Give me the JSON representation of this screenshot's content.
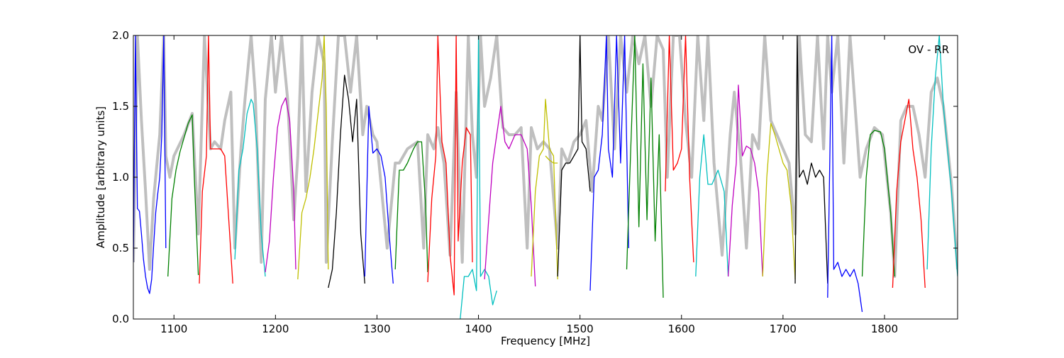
{
  "chart_data": {
    "type": "line",
    "title": "",
    "xlabel": "Frequency [MHz]",
    "ylabel": "Amplitude [arbitrary units]",
    "xlim": [
      1060,
      1872
    ],
    "ylim": [
      0.0,
      2.0
    ],
    "xticks": [
      1100,
      1200,
      1300,
      1400,
      1500,
      1600,
      1700,
      1800
    ],
    "xtick_labels": [
      "1100",
      "1200",
      "1300",
      "1400",
      "1500",
      "1600",
      "1700",
      "1800"
    ],
    "yticks": [
      0.0,
      0.5,
      1.0,
      1.5,
      2.0
    ],
    "ytick_labels": [
      "0.0",
      "0.5",
      "1.0",
      "1.5",
      "2.0"
    ],
    "grid": false,
    "annotation": "OV - RR",
    "raw_color": "#bfbfbf",
    "raw_series": [
      {
        "x": [
          1060,
          1064,
          1068,
          1072,
          1076,
          1080,
          1086,
          1090,
          1092,
          1096,
          1100,
          1110,
          1118,
          1124,
          1130,
          1136,
          1140,
          1146,
          1150,
          1156,
          1160,
          1166,
          1170,
          1176,
          1180,
          1186,
          1190,
          1196,
          1200,
          1206,
          1212,
          1218,
          1222,
          1226,
          1230,
          1236,
          1242,
          1248,
          1250,
          1256,
          1262,
          1268,
          1274,
          1280,
          1286,
          1290,
          1296,
          1300,
          1310,
          1318,
          1322,
          1330,
          1340,
          1346,
          1350,
          1356,
          1360,
          1366,
          1372,
          1378,
          1384,
          1390,
          1394,
          1398,
          1402,
          1406,
          1412,
          1418,
          1424,
          1430,
          1436,
          1442,
          1448,
          1452,
          1458,
          1464,
          1470,
          1478,
          1482,
          1488,
          1494,
          1500,
          1506,
          1512,
          1518,
          1522,
          1528,
          1534,
          1540,
          1546,
          1552,
          1558,
          1564,
          1570,
          1576,
          1582,
          1586,
          1592,
          1598,
          1604,
          1610,
          1616,
          1622,
          1626,
          1632,
          1640,
          1648,
          1652,
          1658,
          1664,
          1670,
          1676,
          1682,
          1688,
          1694,
          1700,
          1706,
          1712,
          1716,
          1722,
          1728,
          1734,
          1740,
          1744,
          1748,
          1754,
          1760,
          1766,
          1772,
          1776,
          1782,
          1790,
          1798,
          1806,
          1810,
          1816,
          1822,
          1828,
          1834,
          1840,
          1846,
          1852,
          1858,
          1866,
          1872
        ],
        "y": [
          0.4,
          2.0,
          1.4,
          0.9,
          0.35,
          0.85,
          1.3,
          2.0,
          1.15,
          1.0,
          1.15,
          1.3,
          1.45,
          0.6,
          2.0,
          1.2,
          1.25,
          1.2,
          1.4,
          1.6,
          0.5,
          1.2,
          1.55,
          2.0,
          1.6,
          0.4,
          1.55,
          2.0,
          1.6,
          2.0,
          1.55,
          0.7,
          1.15,
          2.0,
          0.9,
          1.6,
          2.0,
          1.8,
          0.4,
          1.25,
          2.0,
          2.0,
          1.6,
          2.0,
          1.3,
          1.5,
          1.3,
          1.25,
          0.5,
          1.1,
          1.1,
          1.2,
          1.25,
          0.5,
          1.3,
          1.2,
          1.35,
          1.1,
          0.45,
          1.6,
          0.4,
          2.0,
          1.3,
          1.0,
          2.0,
          1.5,
          1.7,
          2.0,
          1.35,
          1.3,
          1.3,
          1.35,
          0.5,
          1.35,
          1.2,
          1.25,
          1.2,
          0.5,
          1.2,
          1.1,
          1.25,
          1.3,
          1.4,
          0.9,
          1.5,
          1.4,
          2.0,
          1.2,
          2.0,
          1.6,
          2.0,
          1.8,
          2.0,
          1.5,
          2.0,
          1.9,
          1.0,
          2.0,
          2.0,
          1.4,
          1.0,
          2.0,
          1.4,
          2.0,
          1.1,
          0.45,
          1.3,
          1.6,
          1.15,
          0.5,
          1.3,
          1.2,
          2.0,
          1.4,
          1.3,
          1.2,
          1.1,
          0.6,
          2.0,
          1.3,
          1.25,
          2.0,
          1.2,
          2.0,
          1.6,
          2.0,
          1.1,
          2.0,
          1.4,
          1.0,
          1.2,
          1.35,
          1.3,
          0.75,
          0.3,
          1.4,
          1.5,
          1.5,
          1.3,
          1.0,
          1.6,
          1.7,
          1.5,
          0.95,
          0.35
        ]
      }
    ],
    "series": [
      {
        "color": "#0000ff",
        "x": [
          1060,
          1062,
          1064,
          1066,
          1068,
          1070,
          1072,
          1074,
          1076,
          1078,
          1080,
          1082,
          1084,
          1086,
          1088,
          1090,
          1092
        ],
        "y": [
          0.4,
          2.0,
          0.78,
          0.76,
          0.6,
          0.42,
          0.3,
          0.22,
          0.18,
          0.28,
          0.52,
          0.75,
          0.88,
          1.0,
          1.3,
          2.0,
          0.5
        ]
      },
      {
        "color": "#008000",
        "x": [
          1094,
          1098,
          1102,
          1106,
          1110,
          1114,
          1118,
          1120,
          1124
        ],
        "y": [
          0.3,
          0.85,
          1.05,
          1.18,
          1.28,
          1.38,
          1.44,
          1.0,
          0.31
        ]
      },
      {
        "color": "#ff0000",
        "x": [
          1125,
          1128,
          1132,
          1134,
          1136,
          1140,
          1146,
          1150,
          1154,
          1158
        ],
        "y": [
          0.25,
          0.9,
          1.15,
          2.0,
          1.2,
          1.2,
          1.2,
          1.15,
          0.7,
          0.25
        ]
      },
      {
        "color": "#00bfbf",
        "x": [
          1160,
          1164,
          1168,
          1172,
          1176,
          1178,
          1182,
          1186,
          1190
        ],
        "y": [
          0.42,
          1.05,
          1.2,
          1.45,
          1.55,
          1.52,
          1.2,
          0.6,
          0.3
        ]
      },
      {
        "color": "#bf00bf",
        "x": [
          1190,
          1194,
          1198,
          1202,
          1206,
          1210,
          1214,
          1218,
          1220
        ],
        "y": [
          0.33,
          0.55,
          1.0,
          1.35,
          1.5,
          1.56,
          1.4,
          0.9,
          0.35
        ]
      },
      {
        "color": "#bfbf00",
        "x": [
          1222,
          1226,
          1230,
          1234,
          1238,
          1242,
          1246,
          1248,
          1250,
          1252
        ],
        "y": [
          0.28,
          0.75,
          0.85,
          1.0,
          1.2,
          1.45,
          1.7,
          2.0,
          1.5,
          0.35
        ]
      },
      {
        "color": "#000000",
        "x": [
          1252,
          1256,
          1260,
          1264,
          1268,
          1272,
          1276,
          1280,
          1284,
          1288
        ],
        "y": [
          0.22,
          0.35,
          0.75,
          1.3,
          1.72,
          1.55,
          1.25,
          1.55,
          0.6,
          0.25
        ]
      },
      {
        "color": "#0000ff",
        "x": [
          1288,
          1292,
          1296,
          1300,
          1304,
          1308,
          1312,
          1316
        ],
        "y": [
          0.3,
          1.5,
          1.17,
          1.2,
          1.15,
          1.0,
          0.6,
          0.25
        ]
      },
      {
        "color": "#008000",
        "x": [
          1318,
          1322,
          1326,
          1330,
          1336,
          1340,
          1344,
          1348,
          1350
        ],
        "y": [
          0.35,
          1.05,
          1.05,
          1.1,
          1.2,
          1.25,
          1.25,
          0.8,
          0.33
        ]
      },
      {
        "color": "#ff0000",
        "x": [
          1350,
          1354,
          1358,
          1360,
          1364,
          1368,
          1372,
          1376,
          1378,
          1380,
          1384,
          1388,
          1392,
          1394
        ],
        "y": [
          0.26,
          0.85,
          1.15,
          2.0,
          1.25,
          1.1,
          0.45,
          0.17,
          2.0,
          0.55,
          1.1,
          1.35,
          1.3,
          0.4
        ]
      },
      {
        "color": "#00bfbf",
        "x": [
          1382,
          1386,
          1390,
          1394,
          1398,
          1400,
          1402,
          1406,
          1410,
          1414,
          1418
        ],
        "y": [
          0.0,
          0.3,
          0.3,
          0.35,
          0.2,
          2.0,
          0.3,
          0.35,
          0.3,
          0.1,
          0.2
        ]
      },
      {
        "color": "#bf00bf",
        "x": [
          1406,
          1410,
          1414,
          1418,
          1422,
          1426,
          1430,
          1436,
          1442,
          1448,
          1452,
          1456
        ],
        "y": [
          0.28,
          0.7,
          1.1,
          1.3,
          1.5,
          1.25,
          1.2,
          1.3,
          1.3,
          1.2,
          0.8,
          0.23
        ]
      },
      {
        "color": "#bfbf00",
        "x": [
          1452,
          1456,
          1460,
          1464,
          1466,
          1470,
          1474,
          1478
        ],
        "y": [
          0.3,
          0.9,
          1.15,
          1.2,
          1.55,
          1.2,
          1.15,
          0.28
        ]
      },
      {
        "color": "#bfbf00",
        "x": [
          1466,
          1470,
          1474,
          1478
        ],
        "y": [
          1.15,
          1.12,
          1.1,
          1.1
        ]
      },
      {
        "color": "#000000",
        "x": [
          1478,
          1482,
          1486,
          1490,
          1494,
          1498,
          1500,
          1502,
          1506,
          1510
        ],
        "y": [
          0.3,
          1.05,
          1.1,
          1.1,
          1.15,
          1.2,
          2.0,
          1.25,
          1.2,
          0.9
        ]
      },
      {
        "color": "#0000ff",
        "x": [
          1510,
          1514,
          1518,
          1522,
          1526,
          1528,
          1532,
          1536,
          1540,
          1544,
          1548
        ],
        "y": [
          0.2,
          1.0,
          1.05,
          1.3,
          2.0,
          1.2,
          1.0,
          2.0,
          1.1,
          2.0,
          0.5
        ]
      },
      {
        "color": "#008000",
        "x": [
          1546,
          1550,
          1554,
          1558,
          1562,
          1566,
          1570,
          1574,
          1578,
          1582
        ],
        "y": [
          0.35,
          1.2,
          2.0,
          0.65,
          1.8,
          0.7,
          1.7,
          0.55,
          1.3,
          0.15
        ]
      },
      {
        "color": "#ff0000",
        "x": [
          1584,
          1588,
          1592,
          1596,
          1600,
          1604,
          1608,
          1612
        ],
        "y": [
          0.9,
          2.0,
          1.05,
          1.1,
          1.2,
          2.0,
          1.0,
          0.4
        ]
      },
      {
        "color": "#00bfbf",
        "x": [
          1614,
          1618,
          1622,
          1626,
          1630,
          1636,
          1642,
          1646
        ],
        "y": [
          0.3,
          1.0,
          1.3,
          0.95,
          0.95,
          1.05,
          0.9,
          0.3
        ]
      },
      {
        "color": "#bf00bf",
        "x": [
          1646,
          1650,
          1654,
          1656,
          1660,
          1664,
          1668,
          1672,
          1676,
          1680
        ],
        "y": [
          0.3,
          0.8,
          1.1,
          1.65,
          1.15,
          1.22,
          1.2,
          1.1,
          0.9,
          0.3
        ]
      },
      {
        "color": "#bfbf00",
        "x": [
          1680,
          1684,
          1688,
          1692,
          1696,
          1700,
          1704,
          1708,
          1712
        ],
        "y": [
          0.3,
          1.0,
          1.38,
          1.3,
          1.2,
          1.1,
          1.05,
          0.8,
          0.28
        ]
      },
      {
        "color": "#000000",
        "x": [
          1712,
          1714,
          1716,
          1720,
          1724,
          1728,
          1732,
          1736,
          1740,
          1744
        ],
        "y": [
          0.25,
          2.0,
          1.0,
          1.05,
          0.95,
          1.1,
          1.0,
          1.05,
          1.0,
          0.25
        ]
      },
      {
        "color": "#0000ff",
        "x": [
          1744,
          1748,
          1750,
          1754,
          1758,
          1762,
          1766,
          1770,
          1774,
          1778
        ],
        "y": [
          0.15,
          2.0,
          0.35,
          0.4,
          0.3,
          0.35,
          0.3,
          0.35,
          0.25,
          0.05
        ]
      },
      {
        "color": "#008000",
        "x": [
          1778,
          1782,
          1786,
          1790,
          1796,
          1800,
          1804,
          1806,
          1810
        ],
        "y": [
          0.3,
          1.0,
          1.3,
          1.33,
          1.32,
          1.2,
          0.9,
          0.75,
          0.3
        ]
      },
      {
        "color": "#ff0000",
        "x": [
          1808,
          1812,
          1816,
          1820,
          1824,
          1828,
          1832,
          1836,
          1840
        ],
        "y": [
          0.22,
          0.9,
          1.25,
          1.4,
          1.55,
          1.2,
          1.0,
          0.7,
          0.22
        ]
      },
      {
        "color": "#00bfbf",
        "x": [
          1842,
          1846,
          1850,
          1854,
          1858,
          1862,
          1866,
          1870,
          1872
        ],
        "y": [
          0.35,
          1.2,
          1.7,
          2.0,
          1.5,
          1.2,
          0.9,
          0.5,
          0.3
        ]
      }
    ]
  }
}
